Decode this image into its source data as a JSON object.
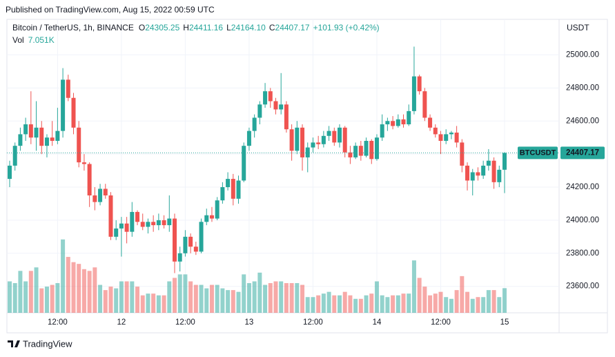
{
  "header": {
    "published": "Published on TradingView.com, Aug 15, 2022 00:59 UTC"
  },
  "footer": {
    "brand": "TradingView"
  },
  "chart_data": {
    "type": "candlestick",
    "title": "Bitcoin / TetherUS, 1h, BINANCE",
    "y_axis_label": "USDT",
    "legend_ohlc": [
      {
        "key": "O",
        "text": "24305.25"
      },
      {
        "key": "H",
        "text": "24411.16"
      },
      {
        "key": "L",
        "text": "24164.10"
      },
      {
        "key": "C",
        "text": "24407.17"
      }
    ],
    "change": "+101.93 (+0.42%)",
    "price_tag": {
      "symbol": "BTCUSDT",
      "text": "24407.17"
    },
    "up_color": "#26a69a",
    "down_color": "#ef5350",
    "categories": [
      null,
      null,
      null,
      null,
      null,
      null,
      null,
      null,
      null,
      "12:00",
      null,
      null,
      null,
      null,
      null,
      null,
      null,
      null,
      null,
      null,
      null,
      "12",
      null,
      null,
      null,
      null,
      null,
      null,
      null,
      null,
      null,
      null,
      null,
      "12:00",
      null,
      null,
      null,
      null,
      null,
      null,
      null,
      null,
      null,
      null,
      null,
      "13",
      null,
      null,
      null,
      null,
      null,
      null,
      null,
      null,
      null,
      null,
      null,
      "12:00",
      null,
      null,
      null,
      null,
      null,
      null,
      null,
      null,
      null,
      null,
      null,
      "14",
      null,
      null,
      null,
      null,
      null,
      null,
      null,
      null,
      null,
      null,
      null,
      "12:00",
      null,
      null,
      null,
      null,
      null,
      null,
      null,
      null,
      null,
      null,
      null,
      "15"
    ],
    "series": [
      {
        "name": "BTCUSDT",
        "open": [
          24250,
          24330,
          24450,
          24520,
          24580,
          24500,
          24560,
          24450,
          24500,
          24480,
          24540,
          24850,
          24740,
          24560,
          24350,
          24340,
          24150,
          24110,
          24190,
          24150,
          23900,
          23950,
          23980,
          23930,
          24050,
          23990,
          23960,
          23990,
          23970,
          24000,
          23970,
          24010,
          23750,
          23800,
          23900,
          23840,
          23810,
          23990,
          24030,
          24010,
          24120,
          24200,
          24250,
          24130,
          24240,
          24450,
          24540,
          24620,
          24700,
          24780,
          24720,
          24670,
          24700,
          24550,
          24420,
          24560,
          24380,
          24440,
          24470,
          24460,
          24510,
          24540,
          24470,
          24560,
          24410,
          24380,
          24450,
          24390,
          24480,
          24370,
          24500,
          24580,
          24600,
          24570,
          24610,
          24580,
          24660,
          24870,
          24780,
          24620,
          24560,
          24520,
          24480,
          24520,
          24530,
          24470,
          24330,
          24240,
          24290,
          24270,
          24330,
          24360,
          24230,
          24305.25
        ],
        "high": [
          24360,
          24470,
          24560,
          24620,
          24780,
          24720,
          24600,
          24520,
          24600,
          24680,
          24920,
          24880,
          24770,
          24600,
          24400,
          24350,
          24200,
          24220,
          24220,
          24170,
          24000,
          24020,
          24020,
          24110,
          24060,
          24040,
          24010,
          24030,
          24040,
          24030,
          24150,
          24040,
          23840,
          23940,
          23920,
          23870,
          24010,
          24070,
          24080,
          24140,
          24230,
          24290,
          24280,
          24270,
          24470,
          24560,
          24640,
          24720,
          24830,
          24800,
          24740,
          24890,
          24720,
          24580,
          24600,
          24580,
          24470,
          24500,
          24510,
          24540,
          24570,
          24560,
          24580,
          24570,
          24450,
          24470,
          24480,
          24500,
          24490,
          24520,
          24640,
          24620,
          24630,
          24640,
          24640,
          24700,
          25050,
          24880,
          24800,
          24640,
          24580,
          24540,
          24550,
          24540,
          24570,
          24490,
          24350,
          24310,
          24320,
          24360,
          24430,
          24380,
          24330,
          24411.16
        ],
        "low": [
          24200,
          24300,
          24420,
          24480,
          24460,
          24420,
          24400,
          24380,
          24450,
          24460,
          24500,
          24720,
          24520,
          24320,
          24300,
          24080,
          24060,
          24090,
          24130,
          23880,
          23880,
          23780,
          23860,
          23900,
          23970,
          23940,
          23920,
          23930,
          23940,
          23950,
          23930,
          23680,
          23690,
          23780,
          23800,
          23790,
          23800,
          23970,
          23990,
          24000,
          24100,
          24180,
          24090,
          24100,
          24230,
          24420,
          24500,
          24580,
          24680,
          24680,
          24640,
          24640,
          24530,
          24360,
          24400,
          24300,
          24290,
          24410,
          24430,
          24440,
          24480,
          24450,
          24440,
          24380,
          24340,
          24370,
          24360,
          24380,
          24340,
          24360,
          24480,
          24540,
          24550,
          24560,
          24560,
          24570,
          24640,
          24760,
          24600,
          24540,
          24500,
          24400,
          24460,
          24490,
          24440,
          24290,
          24180,
          24150,
          24240,
          24250,
          24300,
          24190,
          24200,
          24164.1
        ],
        "close": [
          24330,
          24450,
          24520,
          24580,
          24500,
          24560,
          24450,
          24500,
          24480,
          24540,
          24850,
          24740,
          24560,
          24350,
          24340,
          24150,
          24110,
          24190,
          24150,
          23900,
          23950,
          23980,
          23930,
          24050,
          23990,
          23960,
          23990,
          23970,
          24000,
          23970,
          24010,
          23750,
          23800,
          23900,
          23840,
          23810,
          23990,
          24030,
          24010,
          24120,
          24200,
          24250,
          24130,
          24240,
          24450,
          24540,
          24620,
          24700,
          24780,
          24720,
          24670,
          24700,
          24550,
          24420,
          24560,
          24380,
          24440,
          24470,
          24460,
          24510,
          24540,
          24470,
          24560,
          24410,
          24380,
          24450,
          24390,
          24480,
          24370,
          24500,
          24580,
          24600,
          24570,
          24610,
          24580,
          24660,
          24870,
          24780,
          24620,
          24560,
          24520,
          24480,
          24520,
          24530,
          24470,
          24330,
          24240,
          24290,
          24270,
          24330,
          24360,
          24230,
          24305.25,
          24407.17
        ]
      }
    ],
    "volume": {
      "name": "Vol",
      "last_label": "7.051K",
      "values": [
        9000,
        8500,
        12000,
        9000,
        12000,
        13000,
        7000,
        7500,
        8000,
        8500,
        21000,
        16000,
        14500,
        14000,
        12500,
        12000,
        13000,
        8000,
        6500,
        7500,
        7000,
        9000,
        9000,
        9000,
        7500,
        5000,
        5500,
        5500,
        5000,
        5000,
        9000,
        10000,
        11000,
        11000,
        9000,
        8000,
        8000,
        7000,
        8000,
        8000,
        7000,
        6500,
        6500,
        6000,
        11000,
        8500,
        9000,
        11500,
        8000,
        8500,
        9000,
        9000,
        8500,
        8500,
        8500,
        8000,
        4500,
        4500,
        5000,
        5500,
        6000,
        5000,
        5000,
        6000,
        5000,
        4000,
        4000,
        5000,
        5500,
        9000,
        5000,
        4500,
        5000,
        5000,
        5500,
        5500,
        15000,
        10000,
        7500,
        5000,
        5500,
        6000,
        4500,
        4000,
        6500,
        10500,
        6000,
        4000,
        4500,
        4500,
        6500,
        6500,
        4500,
        7051
      ]
    },
    "volume_ylim": [
      0,
      84000
    ],
    "ylim": [
      23440,
      25215
    ],
    "yticks": [
      {
        "value": 23600,
        "label": "23600.00"
      },
      {
        "value": 23800,
        "label": "23800.00"
      },
      {
        "value": 24000,
        "label": "24000.00"
      },
      {
        "value": 24200,
        "label": "24200.00"
      },
      {
        "value": 24400,
        "label": "24400.00"
      },
      {
        "value": 24600,
        "label": "24600.00"
      },
      {
        "value": 24800,
        "label": "24800.00"
      },
      {
        "value": 25000,
        "label": "25000.00"
      }
    ],
    "grid": true
  }
}
